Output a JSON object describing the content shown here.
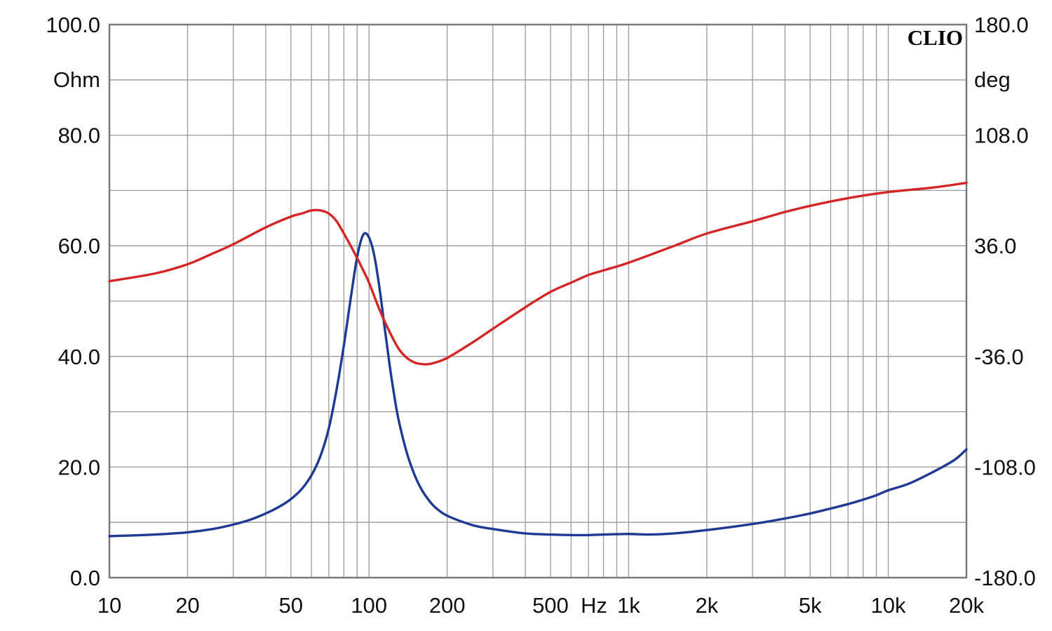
{
  "chart_data": {
    "type": "line",
    "brand": "CLIO",
    "x_scale": "log",
    "xlim": [
      10,
      20000
    ],
    "x_ticks": [
      {
        "value": 10,
        "label": "10"
      },
      {
        "value": 20,
        "label": "20"
      },
      {
        "value": 50,
        "label": "50"
      },
      {
        "value": 100,
        "label": "100"
      },
      {
        "value": 200,
        "label": "200"
      },
      {
        "value": 500,
        "label": "500"
      },
      {
        "value": 1000,
        "label": "1k"
      },
      {
        "value": 2000,
        "label": "2k"
      },
      {
        "value": 5000,
        "label": "5k"
      },
      {
        "value": 10000,
        "label": "10k"
      },
      {
        "value": 20000,
        "label": "20k"
      }
    ],
    "x_unit_label": "Hz",
    "y_left": {
      "unit": "Ohm",
      "lim": [
        0,
        100
      ],
      "ticks": [
        "0.0",
        "20.0",
        "40.0",
        "60.0",
        "80.0",
        "100.0"
      ],
      "tick_values": [
        0,
        20,
        40,
        60,
        80,
        100
      ]
    },
    "y_right": {
      "unit": "deg",
      "lim": [
        -180,
        180
      ],
      "ticks": [
        "-180.0",
        "-108.0",
        "-36.0",
        "36.0",
        "108.0",
        "180.0"
      ],
      "tick_values": [
        -180,
        -108,
        -36,
        36,
        108,
        180
      ]
    },
    "grid": true,
    "series": [
      {
        "axis": "left",
        "color": "#1f3a93",
        "x": [
          10,
          15,
          20,
          25,
          30,
          35,
          40,
          45,
          50,
          55,
          60,
          65,
          70,
          75,
          80,
          85,
          90,
          95,
          100,
          105,
          110,
          115,
          120,
          125,
          130,
          140,
          150,
          160,
          170,
          180,
          200,
          250,
          300,
          400,
          500,
          600,
          700,
          800,
          1000,
          1200,
          1500,
          2000,
          3000,
          4000,
          5000,
          6000,
          7000,
          8000,
          9000,
          10000,
          12000,
          15000,
          18000,
          20000
        ],
        "y": [
          7.5,
          7.8,
          8.2,
          8.8,
          9.6,
          10.5,
          11.6,
          12.8,
          14.2,
          16.0,
          18.5,
          22.0,
          27.0,
          34.0,
          42.0,
          50.5,
          58.0,
          62.0,
          61.5,
          58.0,
          52.0,
          45.0,
          38.5,
          33.0,
          28.5,
          22.5,
          18.5,
          15.8,
          14.0,
          12.7,
          11.2,
          9.5,
          8.8,
          8.0,
          7.8,
          7.7,
          7.7,
          7.8,
          7.9,
          7.8,
          8.0,
          8.6,
          9.7,
          10.7,
          11.6,
          12.5,
          13.3,
          14.1,
          14.9,
          15.8,
          17.0,
          19.2,
          21.3,
          23.2
        ]
      },
      {
        "axis": "right",
        "color": "#d42626",
        "x": [
          10,
          15,
          20,
          25,
          30,
          40,
          50,
          55,
          60,
          65,
          70,
          75,
          80,
          85,
          90,
          95,
          100,
          110,
          120,
          130,
          140,
          150,
          160,
          170,
          180,
          200,
          250,
          300,
          400,
          500,
          600,
          700,
          800,
          1000,
          1500,
          2000,
          3000,
          4000,
          5000,
          7000,
          10000,
          15000,
          20000
        ],
        "y": [
          13,
          18,
          24,
          31,
          37,
          48,
          55,
          57,
          59,
          59,
          57,
          52,
          44,
          36,
          28,
          20,
          12,
          -6,
          -20,
          -31,
          -37,
          -40,
          -41,
          -41,
          -40,
          -37,
          -27,
          -18,
          -4,
          6,
          12,
          17,
          20,
          25,
          36,
          44,
          52,
          58,
          62,
          67,
          71,
          74,
          77
        ]
      }
    ]
  }
}
